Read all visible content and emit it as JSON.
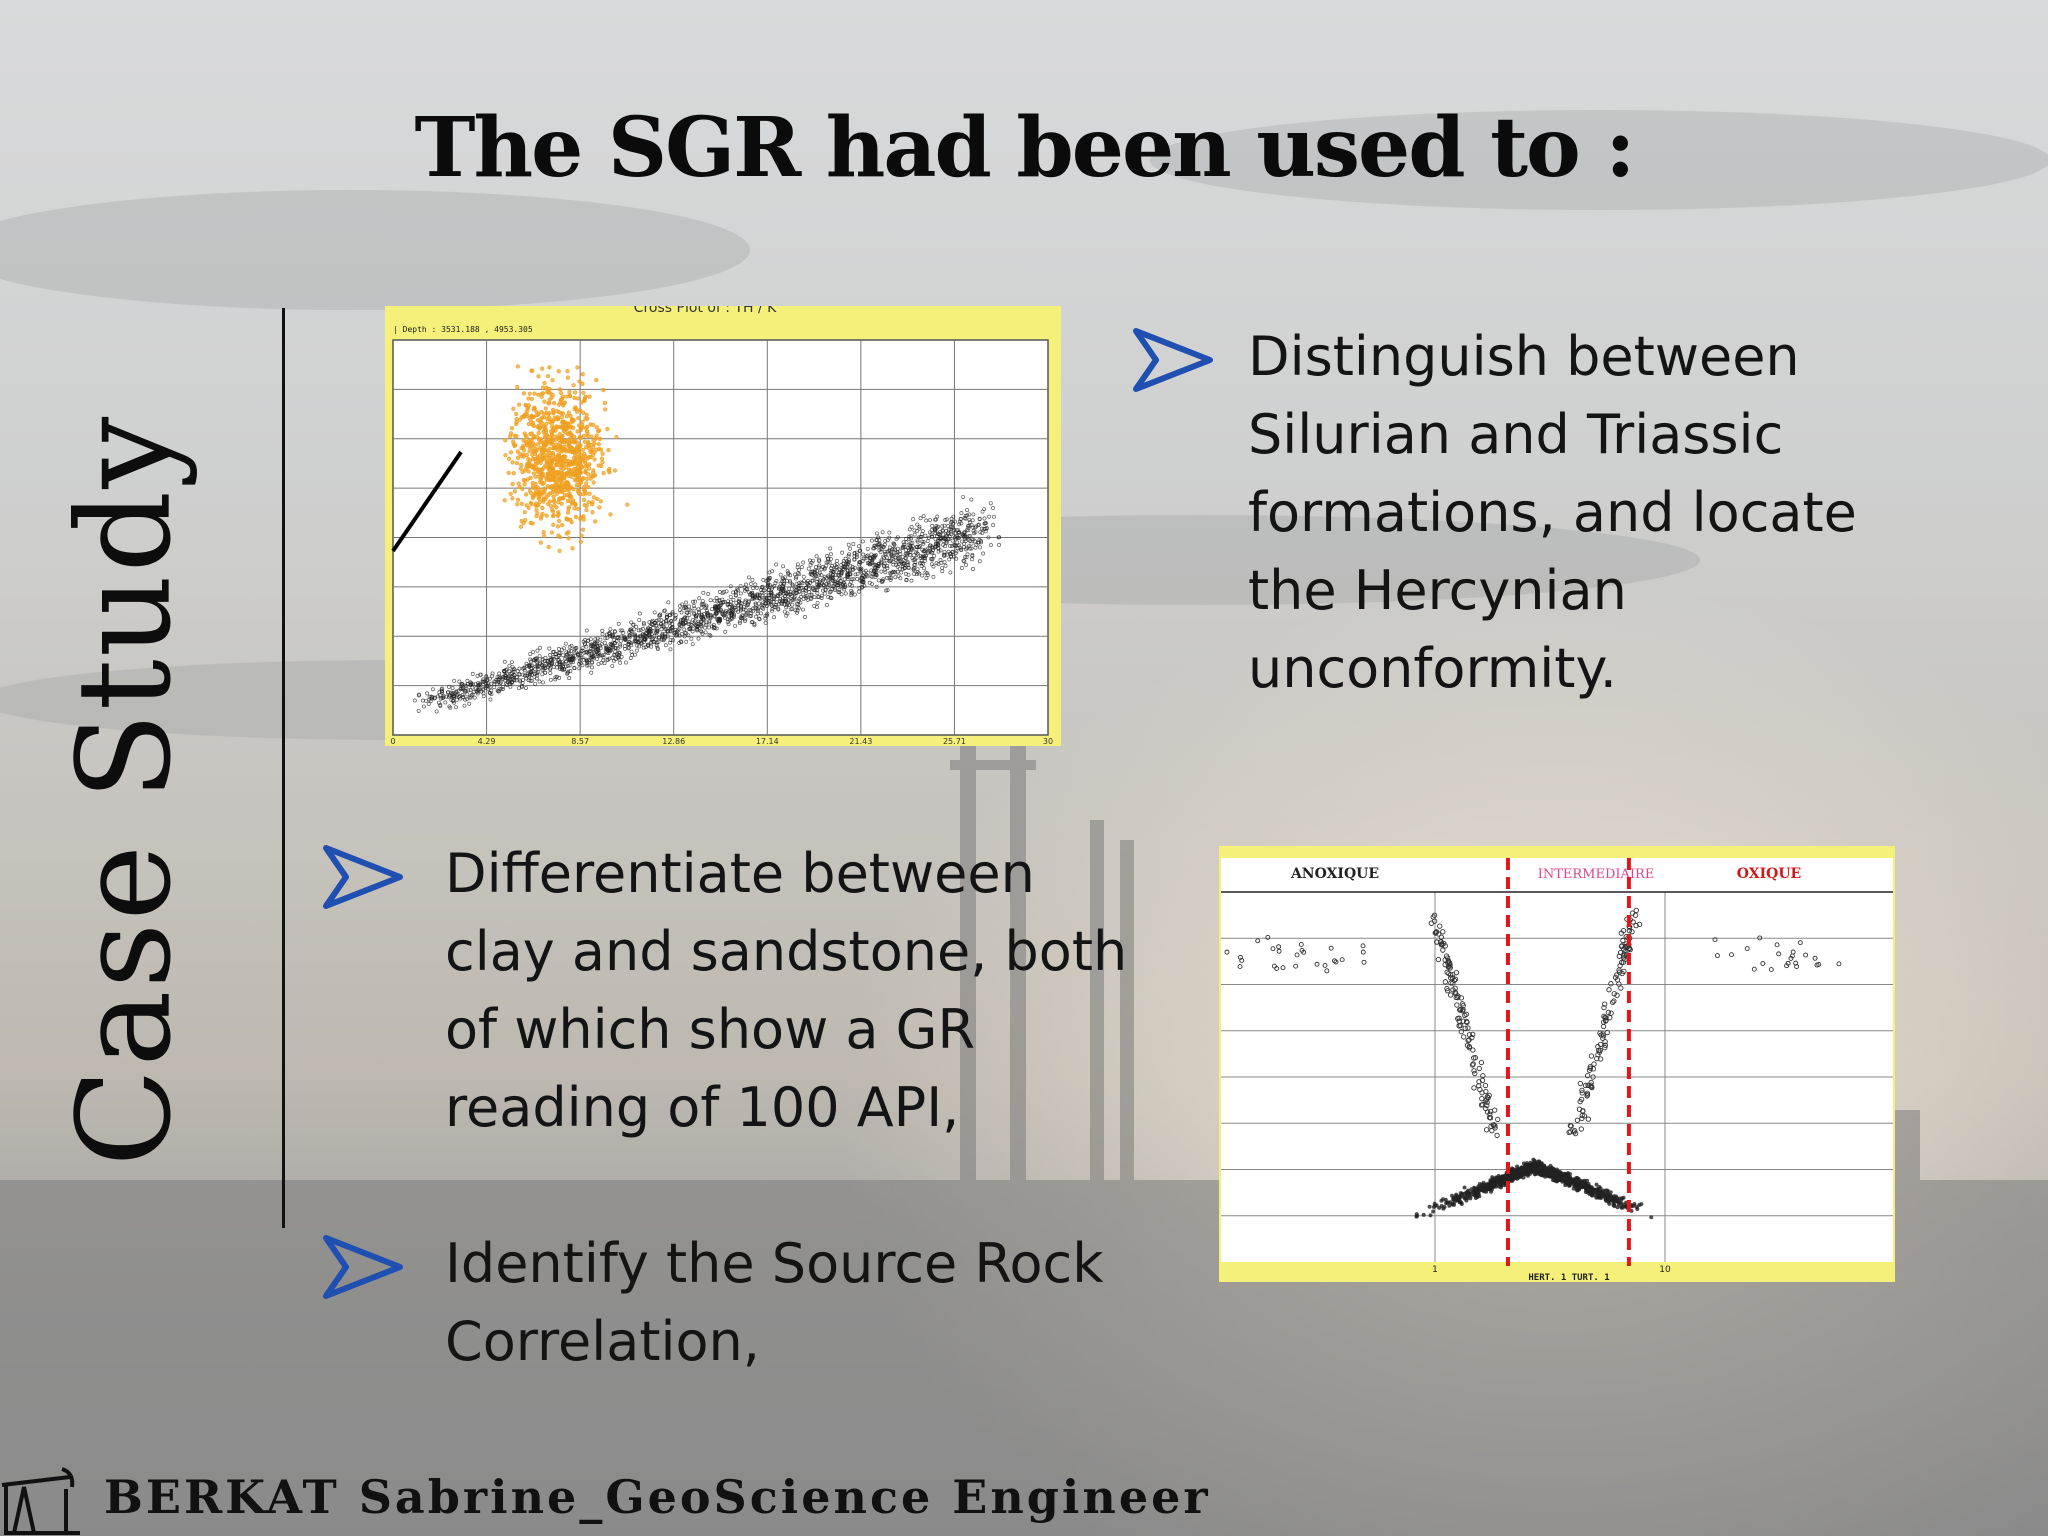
{
  "slide": {
    "title": "The SGR had been used to :",
    "side_title": "Case Study",
    "footer": "BERKAT Sabrine_GeoScience Engineer"
  },
  "bullets": [
    {
      "lines": [
        "Distinguish between",
        "Silurian and Triassic",
        "formations, and locate",
        "the Hercynian",
        "unconformity."
      ]
    },
    {
      "lines": [
        "Differentiate between",
        "clay and sandstone, both",
        "of which show a GR",
        "reading of 100 API,"
      ]
    },
    {
      "lines": [
        "Identify the Source Rock",
        "Correlation,"
      ]
    }
  ],
  "icons": {
    "bullet": "chevron-arrow-icon",
    "footer": "oil-pump-icon"
  },
  "colors": {
    "accent": "#1f4fb0",
    "chart_bg": "#f5f07a",
    "orange": "#f0a020",
    "dots": "#222222",
    "red_line": "#e01818"
  },
  "chart_data": [
    {
      "type": "scatter",
      "title": "Cross Plot of : TH / K",
      "depth_label": "| Depth : 3531.188 , 4953.305",
      "x_ticks": [
        "0",
        "4.29",
        "8.57",
        "12.86",
        "17.14",
        "21.43",
        "25.71",
        "30"
      ],
      "xlim": [
        0,
        30
      ],
      "grid": true,
      "series": [
        {
          "color": "orange",
          "cluster": {
            "x_center": 7.5,
            "x_spread": 3.5,
            "y_center": 0.7,
            "y_spread": 0.22,
            "count": 900
          }
        },
        {
          "color": "black",
          "cluster": {
            "trend_from": [
              1.5,
              0.08
            ],
            "trend_to": [
              27,
              0.52
            ],
            "count": 2200
          }
        }
      ]
    },
    {
      "type": "scatter",
      "zone_labels": [
        "ANOXIQUE",
        "INTERMEDIAIRE",
        "OXIQUE"
      ],
      "x_axis_label": "HERT. 1 TURT. 1",
      "x_ticks": [
        "1",
        "10"
      ],
      "grid": true,
      "red_lines_x": [
        0.43,
        0.61
      ],
      "series": [
        {
          "color": "black",
          "shape": "V",
          "apex_x": 0.47,
          "apex_y": 0.78
        }
      ]
    }
  ]
}
